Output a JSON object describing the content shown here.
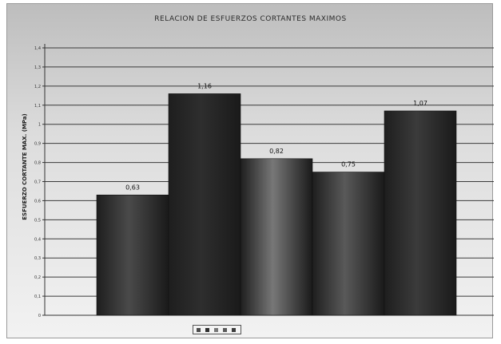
{
  "chart_data": {
    "type": "bar",
    "title": "RELACION DE ESFUERZOS CORTANTES MAXIMOS",
    "xlabel": "",
    "ylabel": "ESFUERZO CORTANTE MAX. (MPa)",
    "categories": [
      "",
      "",
      "",
      "",
      ""
    ],
    "values": [
      0.63,
      1.16,
      0.82,
      0.75,
      1.07
    ],
    "data_labels": [
      "0,63",
      "1,16",
      "0,82",
      "0,75",
      "1,07"
    ],
    "ylim": [
      0,
      1.4
    ],
    "yticks": [
      "0",
      "0,1",
      "0,2",
      "0,3",
      "0,4",
      "0,5",
      "0,6",
      "0,7",
      "0,8",
      "0,9",
      "1",
      "1,1",
      "1,2",
      "1,3",
      "1,4"
    ],
    "grid": true,
    "legend": [
      "",
      "",
      "",
      "",
      ""
    ],
    "legend_placement": "bottom",
    "colors": [
      "#4a4a4a",
      "#2e2e2e",
      "#777777",
      "#595959",
      "#3b3b3b"
    ]
  }
}
